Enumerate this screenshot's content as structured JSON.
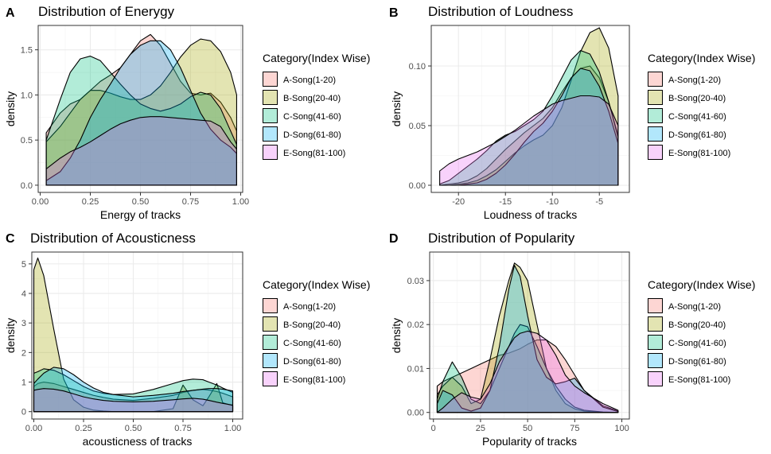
{
  "legend": {
    "title": "Category(Index Wise)",
    "items": [
      {
        "label": "A-Song(1-20)",
        "color": "#F8766D"
      },
      {
        "label": "B-Song(20-40)",
        "color": "#A3A500"
      },
      {
        "label": "C-Song(41-60)",
        "color": "#00BF7D"
      },
      {
        "label": "D-Song(61-80)",
        "color": "#00B0F6"
      },
      {
        "label": "E-Song(81-100)",
        "color": "#E76BF3"
      }
    ]
  },
  "chart_data": [
    {
      "panel": "A",
      "type": "area",
      "title": "Distribution of Enerygy",
      "xlabel": "Energy of tracks",
      "ylabel": "density",
      "xlim": [
        -0.01,
        1.01
      ],
      "ylim": [
        -0.08,
        1.77
      ],
      "xticks": [
        0.0,
        0.25,
        0.5,
        0.75,
        1.0
      ],
      "xtick_labels": [
        "0.00",
        "0.25",
        "0.50",
        "0.75",
        "1.00"
      ],
      "yticks": [
        0.0,
        0.5,
        1.0,
        1.5
      ],
      "ytick_labels": [
        "0.0",
        "0.5",
        "1.0",
        "1.5"
      ],
      "x": [
        0.03,
        0.1,
        0.15,
        0.2,
        0.25,
        0.3,
        0.35,
        0.4,
        0.45,
        0.5,
        0.55,
        0.6,
        0.65,
        0.7,
        0.75,
        0.8,
        0.85,
        0.9,
        0.95,
        0.98
      ],
      "series": [
        {
          "name": "A-Song(1-20)",
          "values": [
            0.58,
            0.8,
            0.9,
            0.95,
            1.05,
            1.15,
            1.22,
            1.3,
            1.45,
            1.6,
            1.67,
            1.55,
            1.35,
            1.15,
            1.02,
            1.0,
            1.02,
            0.92,
            0.75,
            0.6
          ]
        },
        {
          "name": "B-Song(20-40)",
          "values": [
            0.48,
            0.65,
            0.8,
            0.95,
            1.05,
            1.05,
            1.02,
            0.98,
            0.95,
            0.95,
            1.0,
            1.1,
            1.25,
            1.42,
            1.55,
            1.62,
            1.6,
            1.48,
            1.25,
            1.0
          ]
        },
        {
          "name": "C-Song(41-60)",
          "values": [
            0.5,
            0.95,
            1.25,
            1.4,
            1.43,
            1.38,
            1.25,
            1.12,
            1.0,
            0.9,
            0.85,
            0.82,
            0.85,
            0.9,
            0.98,
            1.03,
            1.0,
            0.85,
            0.6,
            0.45
          ]
        },
        {
          "name": "D-Song(61-80)",
          "values": [
            0.05,
            0.15,
            0.3,
            0.5,
            0.75,
            0.95,
            1.12,
            1.3,
            1.45,
            1.55,
            1.6,
            1.6,
            1.5,
            1.3,
            1.05,
            0.8,
            0.62,
            0.5,
            0.42,
            0.35
          ]
        },
        {
          "name": "E-Song(81-100)",
          "values": [
            0.18,
            0.3,
            0.37,
            0.42,
            0.48,
            0.55,
            0.62,
            0.68,
            0.72,
            0.75,
            0.76,
            0.76,
            0.75,
            0.74,
            0.73,
            0.72,
            0.71,
            0.65,
            0.48,
            0.4
          ]
        }
      ]
    },
    {
      "panel": "B",
      "type": "area",
      "title": "Distribution of Loudness",
      "xlabel": "Loudness of tracks",
      "ylabel": "density",
      "xlim": [
        -22.9,
        -1.8
      ],
      "ylim": [
        -0.006,
        0.134
      ],
      "xticks": [
        -20,
        -15,
        -10,
        -5
      ],
      "xtick_labels": [
        "-20",
        "-15",
        "-10",
        "-5"
      ],
      "yticks": [
        0.0,
        0.05,
        0.1
      ],
      "ytick_labels": [
        "0.00",
        "0.05",
        "0.10"
      ],
      "x": [
        -22,
        -21,
        -20,
        -19,
        -18,
        -17,
        -16,
        -15,
        -14,
        -13,
        -12,
        -11,
        -10,
        -9,
        -8,
        -7,
        -6,
        -5,
        -4,
        -3
      ],
      "series": [
        {
          "name": "A-Song(1-20)",
          "values": [
            0.0,
            0.001,
            0.002,
            0.004,
            0.008,
            0.014,
            0.022,
            0.03,
            0.037,
            0.044,
            0.05,
            0.056,
            0.065,
            0.078,
            0.09,
            0.098,
            0.1,
            0.09,
            0.07,
            0.042
          ]
        },
        {
          "name": "B-Song(20-40)",
          "values": [
            0.0,
            0.0,
            0.001,
            0.002,
            0.004,
            0.008,
            0.013,
            0.02,
            0.027,
            0.033,
            0.038,
            0.042,
            0.05,
            0.065,
            0.088,
            0.112,
            0.128,
            0.132,
            0.115,
            0.075
          ]
        },
        {
          "name": "C-Song(41-60)",
          "values": [
            0.001,
            0.004,
            0.01,
            0.016,
            0.022,
            0.029,
            0.037,
            0.042,
            0.045,
            0.05,
            0.055,
            0.062,
            0.075,
            0.09,
            0.105,
            0.113,
            0.11,
            0.095,
            0.07,
            0.04
          ]
        },
        {
          "name": "D-Song(61-80)",
          "values": [
            0.0,
            0.0,
            0.0,
            0.001,
            0.002,
            0.005,
            0.01,
            0.017,
            0.026,
            0.036,
            0.045,
            0.052,
            0.062,
            0.075,
            0.09,
            0.098,
            0.096,
            0.083,
            0.062,
            0.035
          ]
        },
        {
          "name": "E-Song(81-100)",
          "values": [
            0.012,
            0.018,
            0.022,
            0.025,
            0.028,
            0.032,
            0.036,
            0.041,
            0.046,
            0.052,
            0.058,
            0.063,
            0.068,
            0.071,
            0.073,
            0.075,
            0.075,
            0.074,
            0.068,
            0.05
          ]
        }
      ]
    },
    {
      "panel": "C",
      "type": "area",
      "title": "Distribution of Acousticness",
      "xlabel": "acousticness of tracks",
      "ylabel": "density",
      "xlim": [
        -0.01,
        1.05
      ],
      "ylim": [
        -0.25,
        5.4
      ],
      "xticks": [
        0.0,
        0.25,
        0.5,
        0.75,
        1.0
      ],
      "xtick_labels": [
        "0.00",
        "0.25",
        "0.50",
        "0.75",
        "1.00"
      ],
      "yticks": [
        0,
        1,
        2,
        3,
        4,
        5
      ],
      "ytick_labels": [
        "0",
        "1",
        "2",
        "3",
        "4",
        "5"
      ],
      "x": [
        0.0,
        0.02,
        0.05,
        0.1,
        0.15,
        0.2,
        0.25,
        0.3,
        0.35,
        0.4,
        0.5,
        0.6,
        0.7,
        0.75,
        0.8,
        0.85,
        0.88,
        0.92,
        0.95,
        1.0
      ],
      "series": [
        {
          "name": "A-Song(1-20)",
          "values": [
            0.85,
            0.95,
            1.0,
            0.95,
            0.85,
            0.75,
            0.65,
            0.55,
            0.48,
            0.42,
            0.38,
            0.45,
            0.55,
            0.65,
            0.72,
            0.75,
            0.73,
            0.68,
            0.62,
            0.5
          ]
        },
        {
          "name": "B-Song(20-40)",
          "values": [
            4.8,
            5.2,
            4.6,
            2.8,
            1.1,
            0.4,
            0.15,
            0.05,
            0.02,
            0.0,
            0.0,
            0.0,
            0.1,
            0.9,
            0.4,
            0.2,
            0.5,
            0.95,
            0.3,
            0.2
          ]
        },
        {
          "name": "C-Song(41-60)",
          "values": [
            1.3,
            1.35,
            1.45,
            1.4,
            1.25,
            1.05,
            0.85,
            0.7,
            0.62,
            0.58,
            0.6,
            0.75,
            0.95,
            1.05,
            1.1,
            1.08,
            1.0,
            0.9,
            0.8,
            0.65
          ]
        },
        {
          "name": "D-Song(61-80)",
          "values": [
            0.95,
            1.1,
            1.3,
            1.5,
            1.45,
            1.25,
            1.0,
            0.8,
            0.65,
            0.58,
            0.5,
            0.55,
            0.62,
            0.68,
            0.72,
            0.76,
            0.78,
            0.78,
            0.76,
            0.7
          ]
        },
        {
          "name": "E-Song(81-100)",
          "values": [
            0.72,
            0.75,
            0.78,
            0.76,
            0.7,
            0.6,
            0.5,
            0.43,
            0.38,
            0.35,
            0.33,
            0.35,
            0.4,
            0.43,
            0.45,
            0.42,
            0.38,
            0.32,
            0.28,
            0.22
          ]
        }
      ]
    },
    {
      "panel": "D",
      "type": "area",
      "title": "Distribution of Popularity",
      "xlabel": "Popularity of tracks",
      "ylabel": "density",
      "xlim": [
        -2,
        104
      ],
      "ylim": [
        -0.0015,
        0.0365
      ],
      "xticks": [
        0,
        25,
        50,
        75,
        100
      ],
      "xtick_labels": [
        "0",
        "25",
        "50",
        "75",
        "100"
      ],
      "yticks": [
        0.0,
        0.01,
        0.02,
        0.03
      ],
      "ytick_labels": [
        "0.00",
        "0.01",
        "0.02",
        "0.03"
      ],
      "x": [
        2,
        5,
        10,
        15,
        20,
        25,
        30,
        35,
        40,
        43,
        46,
        50,
        55,
        60,
        65,
        70,
        75,
        80,
        90,
        98
      ],
      "series": [
        {
          "name": "A-Song(1-20)",
          "values": [
            0.006,
            0.007,
            0.008,
            0.009,
            0.01,
            0.011,
            0.012,
            0.013,
            0.0135,
            0.014,
            0.0145,
            0.0155,
            0.0165,
            0.0165,
            0.015,
            0.012,
            0.0085,
            0.005,
            0.0015,
            0.0003
          ]
        },
        {
          "name": "B-Song(20-40)",
          "values": [
            0.004,
            0.006,
            0.008,
            0.006,
            0.002,
            0.003,
            0.012,
            0.022,
            0.03,
            0.034,
            0.033,
            0.03,
            0.02,
            0.01,
            0.005,
            0.002,
            0.0008,
            0.0003,
            0.0,
            0.0
          ]
        },
        {
          "name": "C-Song(41-60)",
          "values": [
            0.003,
            0.007,
            0.0115,
            0.008,
            0.003,
            0.002,
            0.005,
            0.01,
            0.015,
            0.018,
            0.02,
            0.0195,
            0.015,
            0.01,
            0.006,
            0.003,
            0.0012,
            0.0005,
            0.0001,
            0.0
          ]
        },
        {
          "name": "D-Song(61-80)",
          "values": [
            0.002,
            0.005,
            0.004,
            0.001,
            0.0003,
            0.001,
            0.005,
            0.015,
            0.028,
            0.0335,
            0.031,
            0.022,
            0.012,
            0.008,
            0.0065,
            0.007,
            0.0078,
            0.005,
            0.0012,
            0.0002
          ]
        },
        {
          "name": "E-Song(81-100)",
          "values": [
            0.0,
            0.001,
            0.003,
            0.0045,
            0.0035,
            0.003,
            0.0065,
            0.0115,
            0.015,
            0.017,
            0.018,
            0.0185,
            0.018,
            0.0165,
            0.013,
            0.0085,
            0.006,
            0.0045,
            0.002,
            0.0005
          ]
        }
      ]
    }
  ]
}
